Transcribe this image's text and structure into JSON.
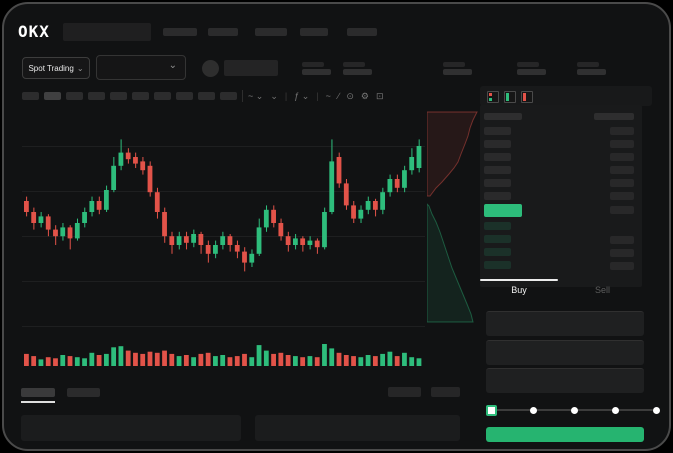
{
  "app": {
    "logo_text": "OKX"
  },
  "colors": {
    "candle_up": "#2EBD7C",
    "candle_down": "#E25349",
    "price_highlight": "#2DBD7B",
    "buy_button": "#26B470",
    "background": "#111213",
    "panel": "#191A1B"
  },
  "header": {
    "nav_placeholder_count": 5
  },
  "ticker": {
    "market_selector": {
      "label": "Spot Trading",
      "chevron": "⌄"
    },
    "pair_dropdown_chevron": "⌄",
    "stat_group_count": 5
  },
  "toolbar": {
    "timeframe_placeholder_count": 10,
    "active_timeframe_index": 1,
    "icons": [
      {
        "name": "chart-style-icon",
        "glyph": "~ ⌄"
      },
      {
        "name": "chevron-down-icon",
        "glyph": "⌄"
      },
      {
        "name": "toolbar-divider",
        "glyph": "|"
      },
      {
        "name": "indicators-icon",
        "glyph": "ƒ ⌄"
      },
      {
        "name": "toolbar-divider",
        "glyph": "|"
      },
      {
        "name": "line-tool-icon",
        "glyph": "~"
      },
      {
        "name": "trendline-tool-icon",
        "glyph": "∕"
      },
      {
        "name": "snapshot-icon",
        "glyph": "⊙"
      },
      {
        "name": "settings-icon",
        "glyph": "⚙"
      },
      {
        "name": "fullscreen-icon",
        "glyph": "⊡"
      }
    ]
  },
  "orderbook": {
    "view_icons": [
      "orderbook-layout-all-icon",
      "orderbook-layout-bids-icon",
      "orderbook-layout-asks-icon"
    ],
    "ask_row_count": 6,
    "bid_row_count": 4,
    "bid_right_pill_count": 3,
    "has_header_row": true,
    "has_last_price_highlight": true
  },
  "trade_panel": {
    "tabs": [
      {
        "label": "Buy",
        "active": true
      },
      {
        "label": "Sell",
        "active": false
      }
    ],
    "input_placeholder_count": 3,
    "slider": {
      "stops": 5,
      "active_stop_index": 0
    },
    "submit_button_label": ""
  },
  "bottom_section": {
    "tab_placeholder_count": 2,
    "active_tab_index": 0,
    "right_pill_count": 2,
    "table_panel_count": 2
  },
  "chart_data": {
    "type": "candlestick",
    "units": "percent-of-visible-price-range (chart shows no numeric axis labels)",
    "grid_horizontal_lines": 5,
    "candles": [
      [
        60,
        62,
        53,
        55
      ],
      [
        55,
        57,
        47,
        50
      ],
      [
        50,
        55,
        48,
        53
      ],
      [
        53,
        54,
        44,
        47
      ],
      [
        47,
        49,
        40,
        44
      ],
      [
        44,
        50,
        42,
        48
      ],
      [
        48,
        49,
        38,
        43
      ],
      [
        43,
        52,
        42,
        50
      ],
      [
        50,
        57,
        48,
        55
      ],
      [
        55,
        62,
        53,
        60
      ],
      [
        60,
        62,
        54,
        56
      ],
      [
        56,
        67,
        55,
        65
      ],
      [
        65,
        80,
        64,
        76
      ],
      [
        76,
        88,
        74,
        82
      ],
      [
        82,
        84,
        77,
        79
      ],
      [
        80,
        82,
        75,
        77
      ],
      [
        78,
        80,
        72,
        74
      ],
      [
        76,
        78,
        62,
        64
      ],
      [
        64,
        66,
        52,
        55
      ],
      [
        55,
        57,
        41,
        44
      ],
      [
        44,
        46,
        36,
        40
      ],
      [
        40,
        46,
        38,
        44
      ],
      [
        44,
        46,
        38,
        41
      ],
      [
        41,
        47,
        39,
        45
      ],
      [
        45,
        46,
        36,
        40
      ],
      [
        40,
        42,
        32,
        36
      ],
      [
        36,
        42,
        34,
        40
      ],
      [
        40,
        46,
        38,
        44
      ],
      [
        44,
        45,
        37,
        40
      ],
      [
        40,
        42,
        34,
        37
      ],
      [
        37,
        39,
        28,
        32
      ],
      [
        32,
        38,
        30,
        36
      ],
      [
        36,
        52,
        35,
        48
      ],
      [
        48,
        58,
        46,
        56
      ],
      [
        56,
        58,
        48,
        50
      ],
      [
        50,
        52,
        42,
        44
      ],
      [
        44,
        46,
        37,
        40
      ],
      [
        40,
        45,
        38,
        43
      ],
      [
        43,
        44,
        37,
        40
      ],
      [
        40,
        44,
        38,
        42
      ],
      [
        42,
        43,
        36,
        39
      ],
      [
        39,
        57,
        38,
        55
      ],
      [
        55,
        88,
        54,
        78
      ],
      [
        80,
        82,
        66,
        68
      ],
      [
        68,
        70,
        56,
        58
      ],
      [
        58,
        60,
        50,
        52
      ],
      [
        52,
        58,
        50,
        56
      ],
      [
        56,
        62,
        54,
        60
      ],
      [
        60,
        61,
        53,
        56
      ],
      [
        56,
        66,
        54,
        64
      ],
      [
        64,
        72,
        62,
        70
      ],
      [
        70,
        72,
        64,
        66
      ],
      [
        66,
        76,
        64,
        74
      ],
      [
        74,
        84,
        72,
        80
      ],
      [
        75,
        88,
        73,
        85
      ]
    ],
    "volumes": [
      55,
      45,
      30,
      40,
      35,
      50,
      45,
      40,
      35,
      60,
      50,
      55,
      85,
      90,
      70,
      60,
      55,
      65,
      60,
      70,
      55,
      45,
      50,
      40,
      55,
      60,
      45,
      50,
      40,
      45,
      55,
      40,
      95,
      70,
      55,
      60,
      50,
      45,
      40,
      45,
      40,
      100,
      80,
      60,
      50,
      45,
      40,
      50,
      45,
      55,
      65,
      45,
      60,
      40,
      35
    ],
    "depth": {
      "asks_curve": [
        [
          50,
          2
        ],
        [
          46,
          10
        ],
        [
          43,
          18
        ],
        [
          41,
          26
        ],
        [
          38,
          34
        ],
        [
          34,
          44
        ],
        [
          31,
          52
        ],
        [
          27,
          58
        ],
        [
          22,
          64
        ],
        [
          15,
          72
        ],
        [
          9,
          78
        ],
        [
          3,
          86
        ]
      ],
      "bids_curve": [
        [
          2,
          96
        ],
        [
          5,
          104
        ],
        [
          9,
          112
        ],
        [
          13,
          122
        ],
        [
          17,
          134
        ],
        [
          21,
          146
        ],
        [
          25,
          158
        ],
        [
          30,
          170
        ],
        [
          35,
          182
        ],
        [
          40,
          194
        ],
        [
          44,
          204
        ],
        [
          46,
          212
        ]
      ]
    }
  }
}
